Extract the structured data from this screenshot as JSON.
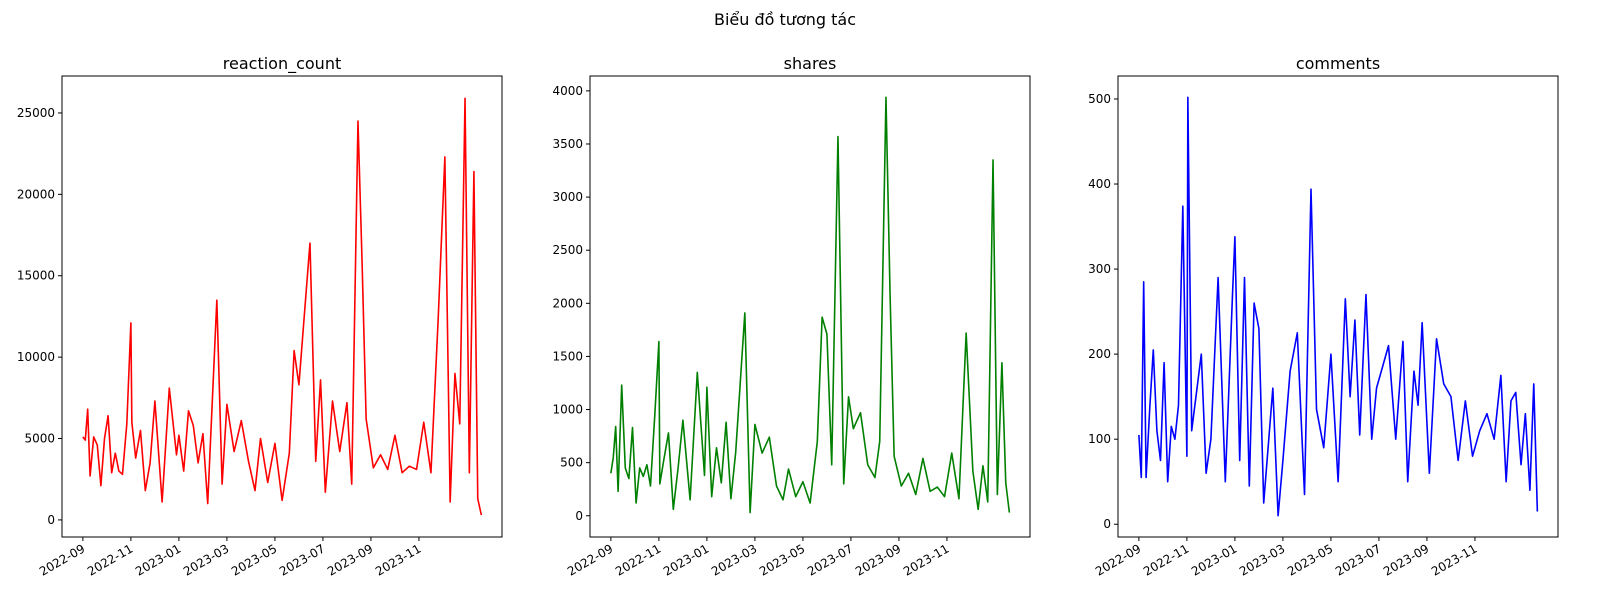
{
  "suptitle": "Biểu đồ tương tác",
  "chart_data": [
    {
      "type": "line",
      "title": "reaction_count",
      "x": [
        0.0,
        0.1,
        0.2,
        0.3,
        0.45,
        0.6,
        0.75,
        0.9,
        1.05,
        1.2,
        1.35,
        1.5,
        1.65,
        1.83,
        2.0,
        2.04,
        2.2,
        2.4,
        2.6,
        2.8,
        3.0,
        3.3,
        3.6,
        3.9,
        4.0,
        4.2,
        4.4,
        4.6,
        4.8,
        5.0,
        5.2,
        5.58,
        5.8,
        6.0,
        6.3,
        6.6,
        6.9,
        7.17,
        7.4,
        7.7,
        8.0,
        8.3,
        8.6,
        8.8,
        9.0,
        9.2,
        9.46,
        9.7,
        9.9,
        10.1,
        10.4,
        10.7,
        11.0,
        11.2,
        11.46,
        11.63,
        11.8,
        12.1,
        12.4,
        12.7,
        13.0,
        13.3,
        13.6,
        13.9,
        14.2,
        14.5,
        14.8,
        15.08,
        15.3,
        15.5,
        15.7,
        15.92,
        16.1,
        16.29,
        16.45,
        16.6
      ],
      "series": [
        {
          "name": "reaction_count",
          "color": "#ff0000",
          "values": [
            5100,
            4900,
            6800,
            2700,
            5100,
            4600,
            2100,
            5000,
            6400,
            2900,
            4100,
            3000,
            2800,
            5900,
            12100,
            6000,
            3800,
            5500,
            1800,
            3500,
            7300,
            1100,
            8100,
            4000,
            5200,
            3000,
            6700,
            5800,
            3500,
            5300,
            1000,
            13500,
            2200,
            7100,
            4200,
            6100,
            3600,
            1800,
            5000,
            2300,
            4700,
            1200,
            4100,
            10400,
            8300,
            12100,
            17000,
            3600,
            8600,
            1700,
            7300,
            4200,
            7200,
            2200,
            24500,
            15900,
            6200,
            3200,
            4000,
            3100,
            5200,
            2900,
            3300,
            3100,
            6000,
            2900,
            12300,
            22300,
            1100,
            9000,
            5900,
            25900,
            2900,
            21400,
            1300,
            300
          ]
        }
      ],
      "xlim": [
        -0.87,
        17.46
      ],
      "xticks": [
        {
          "value": 0,
          "label": "2022-09"
        },
        {
          "value": 2,
          "label": "2022-11"
        },
        {
          "value": 4,
          "label": "2023-01"
        },
        {
          "value": 6,
          "label": "2023-03"
        },
        {
          "value": 8,
          "label": "2023-05"
        },
        {
          "value": 10,
          "label": "2023-07"
        },
        {
          "value": 12,
          "label": "2023-09"
        },
        {
          "value": 14,
          "label": "2023-11"
        }
      ],
      "ylim": [
        -1050,
        27270
      ],
      "yticks": [
        0,
        5000,
        10000,
        15000,
        20000,
        25000
      ]
    },
    {
      "type": "line",
      "title": "shares",
      "x": [
        0.0,
        0.1,
        0.2,
        0.3,
        0.45,
        0.6,
        0.75,
        0.9,
        1.05,
        1.2,
        1.35,
        1.5,
        1.65,
        1.83,
        2.0,
        2.04,
        2.2,
        2.4,
        2.6,
        2.8,
        3.0,
        3.3,
        3.6,
        3.9,
        4.0,
        4.2,
        4.4,
        4.6,
        4.8,
        5.0,
        5.2,
        5.58,
        5.8,
        6.0,
        6.3,
        6.6,
        6.9,
        7.17,
        7.4,
        7.7,
        8.0,
        8.3,
        8.6,
        8.8,
        9.0,
        9.2,
        9.46,
        9.7,
        9.9,
        10.1,
        10.4,
        10.7,
        11.0,
        11.2,
        11.46,
        11.63,
        11.8,
        12.1,
        12.4,
        12.7,
        13.0,
        13.3,
        13.6,
        13.9,
        14.2,
        14.5,
        14.8,
        15.08,
        15.3,
        15.5,
        15.7,
        15.92,
        16.1,
        16.29,
        16.45,
        16.6
      ],
      "series": [
        {
          "name": "shares",
          "color": "#008000",
          "values": [
            400,
            550,
            840,
            230,
            1230,
            450,
            350,
            830,
            120,
            450,
            370,
            480,
            280,
            950,
            1640,
            300,
            520,
            780,
            60,
            450,
            900,
            150,
            1350,
            380,
            1210,
            180,
            640,
            310,
            880,
            160,
            600,
            1910,
            30,
            860,
            590,
            740,
            280,
            150,
            440,
            180,
            320,
            120,
            700,
            1870,
            1710,
            480,
            3570,
            300,
            1120,
            820,
            970,
            480,
            360,
            700,
            3940,
            2090,
            560,
            280,
            400,
            200,
            540,
            230,
            270,
            180,
            590,
            160,
            1720,
            420,
            60,
            470,
            130,
            3350,
            200,
            1440,
            310,
            30
          ]
        }
      ],
      "xlim": [
        -0.87,
        17.46
      ],
      "xticks": [
        {
          "value": 0,
          "label": "2022-09"
        },
        {
          "value": 2,
          "label": "2022-11"
        },
        {
          "value": 4,
          "label": "2023-01"
        },
        {
          "value": 6,
          "label": "2023-03"
        },
        {
          "value": 8,
          "label": "2023-05"
        },
        {
          "value": 10,
          "label": "2023-07"
        },
        {
          "value": 12,
          "label": "2023-09"
        },
        {
          "value": 14,
          "label": "2023-11"
        }
      ],
      "ylim": [
        -200,
        4140
      ],
      "yticks": [
        0,
        500,
        1000,
        1500,
        2000,
        2500,
        3000,
        3500,
        4000
      ]
    },
    {
      "type": "line",
      "title": "comments",
      "x": [
        0.0,
        0.1,
        0.2,
        0.3,
        0.45,
        0.6,
        0.75,
        0.9,
        1.05,
        1.2,
        1.35,
        1.5,
        1.65,
        1.83,
        2.0,
        2.04,
        2.2,
        2.4,
        2.6,
        2.8,
        3.0,
        3.3,
        3.6,
        3.9,
        4.0,
        4.2,
        4.4,
        4.6,
        4.8,
        5.0,
        5.2,
        5.58,
        5.8,
        6.0,
        6.3,
        6.6,
        6.9,
        7.17,
        7.4,
        7.7,
        8.0,
        8.3,
        8.6,
        8.8,
        9.0,
        9.2,
        9.46,
        9.7,
        9.9,
        10.1,
        10.4,
        10.7,
        11.0,
        11.2,
        11.46,
        11.63,
        11.8,
        12.1,
        12.4,
        12.7,
        13.0,
        13.3,
        13.6,
        13.9,
        14.2,
        14.5,
        14.8,
        15.08,
        15.3,
        15.5,
        15.7,
        15.92,
        16.1,
        16.29,
        16.45,
        16.6
      ],
      "series": [
        {
          "name": "comments",
          "color": "#0000ff",
          "values": [
            105,
            55,
            285,
            55,
            135,
            205,
            110,
            75,
            190,
            50,
            115,
            100,
            140,
            374,
            80,
            502,
            110,
            155,
            200,
            60,
            100,
            290,
            50,
            270,
            338,
            75,
            290,
            45,
            260,
            230,
            25,
            160,
            10,
            75,
            180,
            225,
            35,
            394,
            135,
            90,
            200,
            50,
            265,
            150,
            240,
            105,
            270,
            100,
            160,
            180,
            210,
            100,
            215,
            50,
            180,
            140,
            237,
            60,
            218,
            165,
            150,
            75,
            145,
            80,
            110,
            130,
            100,
            175,
            50,
            145,
            155,
            70,
            130,
            40,
            165,
            15
          ]
        }
      ],
      "xlim": [
        -0.87,
        17.46
      ],
      "xticks": [
        {
          "value": 0,
          "label": "2022-09"
        },
        {
          "value": 2,
          "label": "2022-11"
        },
        {
          "value": 4,
          "label": "2023-01"
        },
        {
          "value": 6,
          "label": "2023-03"
        },
        {
          "value": 8,
          "label": "2023-05"
        },
        {
          "value": 10,
          "label": "2023-07"
        },
        {
          "value": 12,
          "label": "2023-09"
        },
        {
          "value": 14,
          "label": "2023-11"
        }
      ],
      "ylim": [
        -15,
        527
      ],
      "yticks": [
        0,
        100,
        200,
        300,
        400,
        500
      ]
    }
  ]
}
